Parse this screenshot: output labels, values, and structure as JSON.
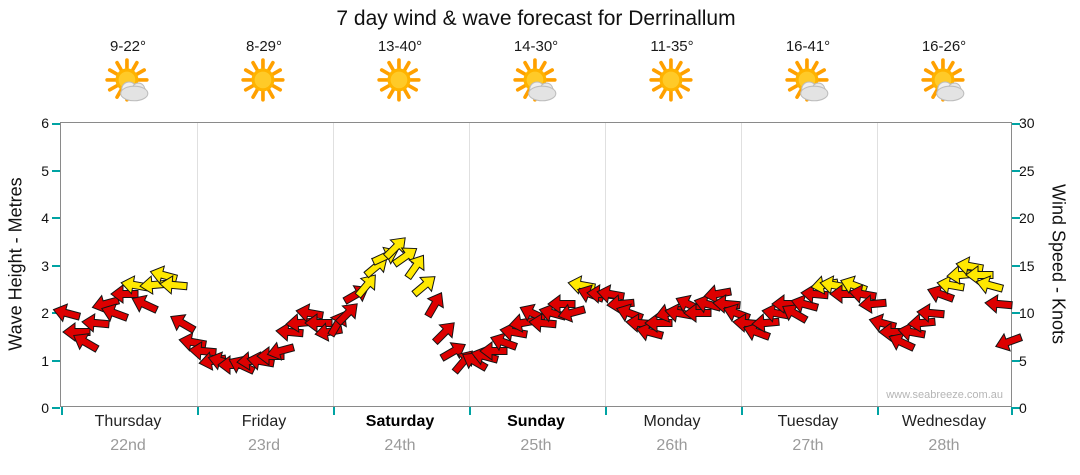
{
  "chart_data": {
    "type": "wind-arrows",
    "title": "7 day wind & wave forecast for Derrinallum",
    "watermark": "www.seabreeze.com.au",
    "y_left": {
      "label": "Wave Height - Metres",
      "min": 0,
      "max": 6,
      "ticks": [
        0,
        1,
        2,
        3,
        4,
        5,
        6
      ]
    },
    "y_right": {
      "label": "Wind Speed - Knots",
      "min": 0,
      "max": 30,
      "ticks": [
        0,
        5,
        10,
        15,
        20,
        25,
        30
      ]
    },
    "color_threshold_knots": 13,
    "colors": {
      "below_threshold": "#DD0000",
      "above_threshold": "#FFE800"
    },
    "days": [
      {
        "label": "Thursday",
        "date": "22nd",
        "temp": "9-22°",
        "icon": "sun-cloud",
        "weekend": false,
        "winds": [
          [
            10,
            195
          ],
          [
            8,
            180
          ],
          [
            7,
            210
          ],
          [
            9,
            185
          ],
          [
            11,
            165
          ],
          [
            10,
            200
          ],
          [
            12,
            180
          ],
          [
            13,
            190
          ],
          [
            11,
            205
          ],
          [
            13,
            175
          ],
          [
            14,
            195
          ],
          [
            13,
            185
          ],
          [
            9,
            210
          ],
          [
            7,
            190
          ]
        ]
      },
      {
        "label": "Friday",
        "date": "23rd",
        "temp": "8-29°",
        "icon": "sun",
        "weekend": false,
        "winds": [
          [
            6,
            185
          ],
          [
            5,
            170
          ],
          [
            5,
            195
          ],
          [
            4.5,
            180
          ],
          [
            4.5,
            205
          ],
          [
            5,
            175
          ],
          [
            5,
            190
          ],
          [
            5.5,
            180
          ],
          [
            6,
            165
          ],
          [
            8,
            185
          ],
          [
            9,
            175
          ],
          [
            10,
            190
          ],
          [
            9,
            180
          ],
          [
            8,
            170
          ]
        ]
      },
      {
        "label": "Saturday",
        "date": "24th",
        "temp": "13-40°",
        "icon": "sun",
        "weekend": true,
        "winds": [
          [
            9,
            -60
          ],
          [
            10,
            -45
          ],
          [
            12,
            -30
          ],
          [
            13,
            -50
          ],
          [
            15,
            -40
          ],
          [
            16,
            -25
          ],
          [
            17,
            -45
          ],
          [
            16,
            -35
          ],
          [
            15,
            -55
          ],
          [
            13,
            -40
          ],
          [
            11,
            -60
          ],
          [
            8,
            -45
          ],
          [
            6,
            -30
          ],
          [
            5,
            -50
          ]
        ]
      },
      {
        "label": "Sunday",
        "date": "25th",
        "temp": "14-30°",
        "icon": "sun-cloud",
        "weekend": true,
        "winds": [
          [
            5,
            210
          ],
          [
            5.5,
            195
          ],
          [
            6,
            180
          ],
          [
            7,
            200
          ],
          [
            8,
            190
          ],
          [
            9,
            170
          ],
          [
            10,
            205
          ],
          [
            9,
            185
          ],
          [
            10,
            195
          ],
          [
            11,
            180
          ],
          [
            10,
            165
          ],
          [
            13,
            190
          ],
          [
            12,
            200
          ],
          [
            12,
            185
          ]
        ]
      },
      {
        "label": "Monday",
        "date": "26th",
        "temp": "11-35°",
        "icon": "sun",
        "weekend": false,
        "winds": [
          [
            12,
            190
          ],
          [
            11,
            175
          ],
          [
            10,
            200
          ],
          [
            9,
            185
          ],
          [
            8,
            195
          ],
          [
            9,
            180
          ],
          [
            10,
            165
          ],
          [
            10,
            190
          ],
          [
            11,
            205
          ],
          [
            10,
            180
          ],
          [
            11,
            195
          ],
          [
            12,
            170
          ],
          [
            11,
            185
          ],
          [
            10,
            200
          ]
        ]
      },
      {
        "label": "Tuesday",
        "date": "27th",
        "temp": "16-41°",
        "icon": "sun-cloud",
        "weekend": false,
        "winds": [
          [
            9,
            185
          ],
          [
            8,
            200
          ],
          [
            9,
            175
          ],
          [
            10,
            190
          ],
          [
            11,
            180
          ],
          [
            10,
            210
          ],
          [
            11,
            195
          ],
          [
            12,
            185
          ],
          [
            13,
            170
          ],
          [
            13,
            190
          ],
          [
            12,
            180
          ],
          [
            13,
            200
          ],
          [
            12,
            190
          ],
          [
            11,
            175
          ]
        ]
      },
      {
        "label": "Wednesday",
        "date": "28th",
        "temp": "16-26°",
        "icon": "sun-cloud",
        "weekend": false,
        "winds": [
          [
            9,
            195
          ],
          [
            8,
            180
          ],
          [
            7,
            205
          ],
          [
            8,
            190
          ],
          [
            9,
            175
          ],
          [
            10,
            185
          ],
          [
            12,
            200
          ],
          [
            13,
            190
          ],
          [
            14,
            175
          ],
          [
            15,
            190
          ],
          [
            14,
            180
          ],
          [
            13,
            195
          ],
          [
            11,
            185
          ],
          [
            7,
            160
          ]
        ]
      }
    ]
  }
}
